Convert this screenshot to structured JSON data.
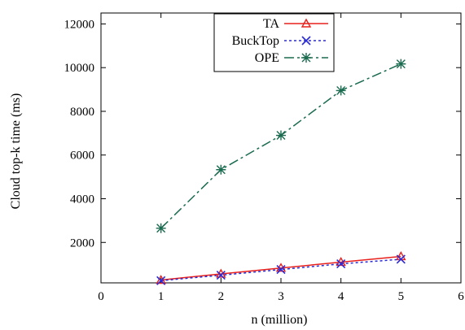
{
  "chart_data": {
    "type": "line",
    "title": "",
    "xlabel": "n (million)",
    "ylabel": "Cloud top-k time (ms)",
    "xlim": [
      0,
      6
    ],
    "ylim": [
      150,
      12500
    ],
    "x_ticks": [
      0,
      1,
      2,
      3,
      4,
      5,
      6
    ],
    "y_ticks": [
      2000,
      4000,
      6000,
      8000,
      10000,
      12000
    ],
    "grid": false,
    "legend_position": "top-center",
    "series": [
      {
        "name": "TA",
        "x": [
          1,
          2,
          3,
          4,
          5
        ],
        "y": [
          280,
          560,
          830,
          1100,
          1360
        ],
        "color": "#e8201c",
        "marker": "triangle",
        "line": "solid"
      },
      {
        "name": "BuckTop",
        "x": [
          1,
          2,
          3,
          4,
          5
        ],
        "y": [
          250,
          500,
          760,
          1020,
          1230
        ],
        "color": "#2a2ad6",
        "marker": "x",
        "line": "dotted"
      },
      {
        "name": "OPE",
        "x": [
          1,
          2,
          3,
          4,
          5
        ],
        "y": [
          2650,
          5330,
          6900,
          8950,
          10170
        ],
        "color": "#1a6b4f",
        "marker": "asterisk",
        "line": "dashdot"
      }
    ]
  }
}
